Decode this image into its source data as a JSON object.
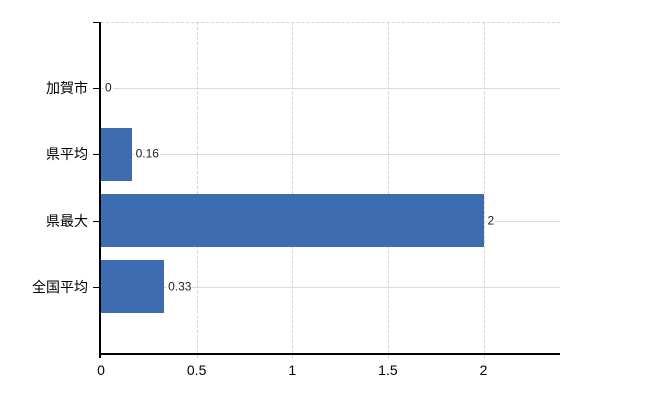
{
  "chart_data": {
    "type": "bar",
    "orientation": "horizontal",
    "title": "",
    "xlabel": "",
    "ylabel": "",
    "categories": [
      "加賀市",
      "県平均",
      "県最大",
      "全国平均"
    ],
    "values": [
      0,
      0.16,
      2,
      0.33
    ],
    "value_labels": [
      "0",
      "0.16",
      "2",
      "0.33"
    ],
    "xticks": [
      0,
      0.5,
      1,
      1.5,
      2
    ],
    "xtick_labels": [
      "0",
      "0.5",
      "1",
      "1.5",
      "2"
    ],
    "xlim": [
      0,
      2.4
    ],
    "grid": true,
    "legend": "none",
    "bar_color": "#3e6cb0",
    "gridline_color": "#d8ded8",
    "vgridline_color": "#d4d4d4",
    "axis_color": "#000000",
    "text_color": "#000000",
    "value_label_color": "#222222",
    "background_color": "#ffffff"
  }
}
